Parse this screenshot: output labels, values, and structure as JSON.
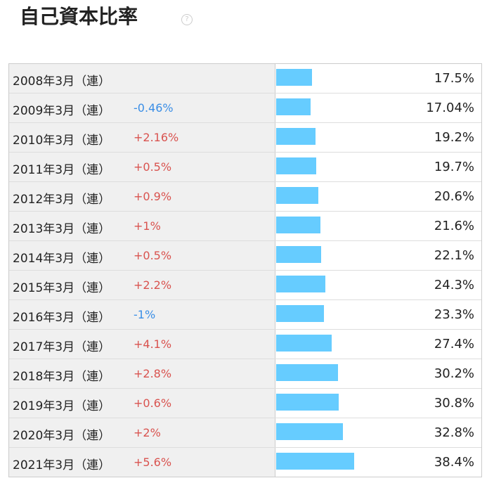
{
  "chart_data": {
    "type": "bar",
    "orientation": "horizontal",
    "title": "自己資本比率",
    "help_icon": "?",
    "categories": [
      "2008年3月（連）",
      "2009年3月（連）",
      "2010年3月（連）",
      "2011年3月（連）",
      "2012年3月（連）",
      "2013年3月（連）",
      "2014年3月（連）",
      "2015年3月（連）",
      "2016年3月（連）",
      "2017年3月（連）",
      "2018年3月（連）",
      "2019年3月（連）",
      "2020年3月（連）",
      "2021年3月（連）"
    ],
    "change_labels": [
      null,
      "-0.46%",
      "+2.16%",
      "+0.5%",
      "+0.9%",
      "+1%",
      "+0.5%",
      "+2.2%",
      "-1%",
      "+4.1%",
      "+2.8%",
      "+0.6%",
      "+2%",
      "+5.6%"
    ],
    "values": [
      17.5,
      17.04,
      19.2,
      19.7,
      20.6,
      21.6,
      22.1,
      24.3,
      23.3,
      27.4,
      30.2,
      30.8,
      32.8,
      38.4
    ],
    "value_labels": [
      "17.5%",
      "17.04%",
      "19.2%",
      "19.7%",
      "20.6%",
      "21.6%",
      "22.1%",
      "24.3%",
      "23.3%",
      "27.4%",
      "30.2%",
      "30.8%",
      "32.8%",
      "38.4%"
    ],
    "xlim": [
      0,
      100
    ],
    "color": "#66ccff",
    "up_color": "#d9534f",
    "down_color": "#3a8ee6"
  }
}
